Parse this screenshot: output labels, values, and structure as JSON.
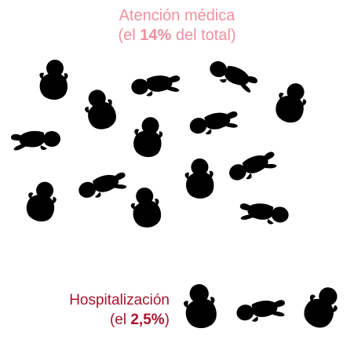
{
  "header": {
    "line1": "Atención médica",
    "line2_pre": "(el ",
    "line2_value": "14%",
    "line2_post": " del total)"
  },
  "hospital": {
    "line1": "Hospitalización",
    "line2_pre": "(el ",
    "line2_value": "2,5%",
    "line2_post": ")"
  },
  "colors": {
    "medical_fill": "#fbe3e8",
    "medical_stroke": "#ee8c9e",
    "hospital_fill": "#f7d7dd",
    "hospital_stroke": "#b01a35"
  },
  "icons": {
    "medical_group": {
      "name": "baby-icon",
      "count": 15
    },
    "hospital_group": {
      "name": "baby-icon",
      "count": 2.5
    }
  }
}
